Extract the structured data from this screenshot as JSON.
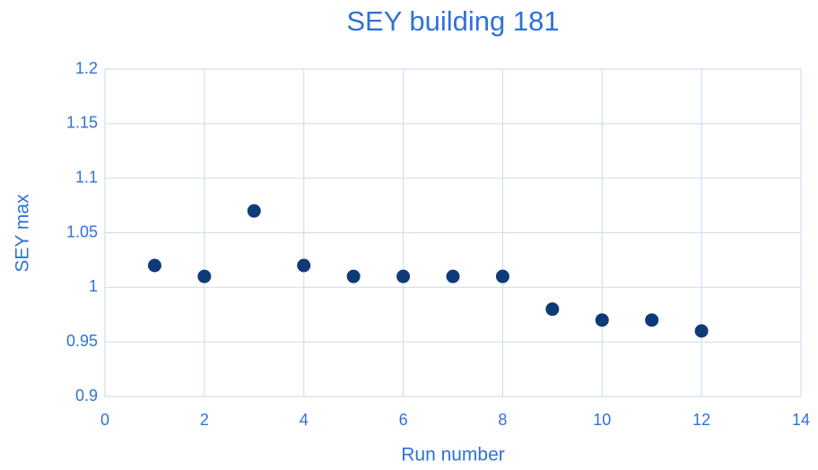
{
  "chart_data": {
    "type": "scatter",
    "title": "SEY building 181",
    "x_label": "Run number",
    "y_label": "SEY max",
    "series": [
      {
        "color": "#0f3a78",
        "x": [
          1,
          2,
          3,
          4,
          5,
          6,
          7,
          8,
          9,
          10,
          11,
          12
        ],
        "values": [
          1.02,
          1.01,
          1.07,
          1.02,
          1.01,
          1.01,
          1.01,
          1.01,
          0.98,
          0.97,
          0.97,
          0.96
        ]
      }
    ],
    "xlim": [
      0,
      14
    ],
    "xticks": [
      0,
      2,
      4,
      6,
      8,
      10,
      12,
      14
    ],
    "ylim": [
      0.9,
      1.2
    ],
    "yticks": [
      0.9,
      0.95,
      1,
      1.05,
      1.1,
      1.15,
      1.2
    ],
    "grid": true
  }
}
